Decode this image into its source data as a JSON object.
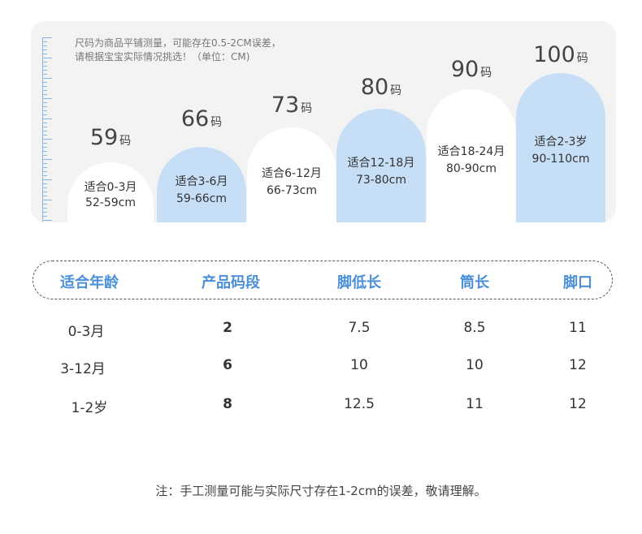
{
  "note": {
    "line1": "尺码为商品平铺测量，可能存在0.5-2CM误差，",
    "line2": "请根据宝宝实际情况挑选！（单位：CM)"
  },
  "sizes": [
    {
      "num": "59",
      "unit": "码",
      "age": "适合0-3月",
      "range": "52-59cm",
      "color": "white"
    },
    {
      "num": "66",
      "unit": "码",
      "age": "适合3-6月",
      "range": "59-66cm",
      "color": "blue"
    },
    {
      "num": "73",
      "unit": "码",
      "age": "适合6-12月",
      "range": "66-73cm",
      "color": "white"
    },
    {
      "num": "80",
      "unit": "码",
      "age": "适合12-18月",
      "range": "73-80cm",
      "color": "blue"
    },
    {
      "num": "90",
      "unit": "码",
      "age": "适合18-24月",
      "range": "80-90cm",
      "color": "white"
    },
    {
      "num": "100",
      "unit": "码",
      "age": "适合2-3岁",
      "range": "90-110cm",
      "color": "blue"
    }
  ],
  "table": {
    "headers": [
      "适合年龄",
      "产品码段",
      "脚低长",
      "筒长",
      "脚口"
    ],
    "rows": [
      [
        "0-3月",
        "2",
        "7.5",
        "8.5",
        "11"
      ],
      [
        "3-12月",
        "6",
        "10",
        "10",
        "12"
      ],
      [
        "1-2岁",
        "8",
        "12.5",
        "11",
        "12"
      ]
    ]
  },
  "footer": "注：手工测量可能与实际尺寸存在1-2cm的误差，敬请理解。"
}
